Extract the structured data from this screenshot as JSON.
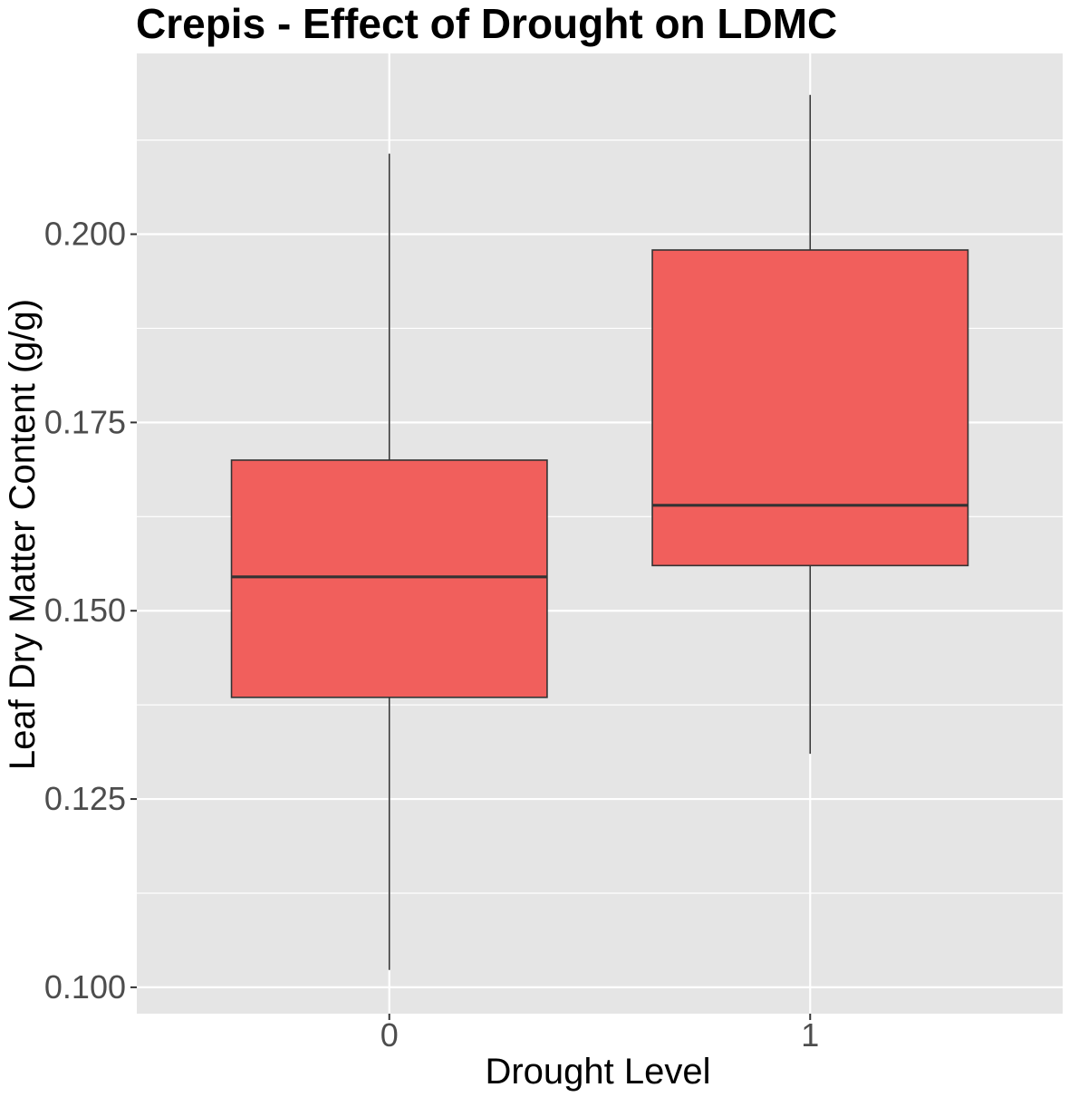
{
  "chart_data": {
    "type": "box",
    "title": "Crepis - Effect of Drought on LDMC",
    "xlabel": "Drought Level",
    "ylabel": "Leaf Dry Matter Content (g/g)",
    "categories": [
      "0",
      "1"
    ],
    "yticks": [
      "0.100",
      "0.125",
      "0.150",
      "0.175",
      "0.200"
    ],
    "ylim": [
      0.0965,
      0.224
    ],
    "grid": true,
    "legend": "none",
    "boxes": [
      {
        "category": "0",
        "whisker_low": 0.1023,
        "q1": 0.1385,
        "median": 0.1545,
        "q3": 0.17,
        "whisker_high": 0.2107
      },
      {
        "category": "1",
        "whisker_low": 0.131,
        "q1": 0.156,
        "median": 0.164,
        "q3": 0.1979,
        "whisker_high": 0.2185
      }
    ],
    "colors": {
      "panel": "#e5e5e5",
      "grid": "#ffffff",
      "box_fill": "#f15f5c",
      "box_outline": "#333333",
      "tick_text": "#4d4d4d",
      "tick_mark": "#333333"
    }
  }
}
